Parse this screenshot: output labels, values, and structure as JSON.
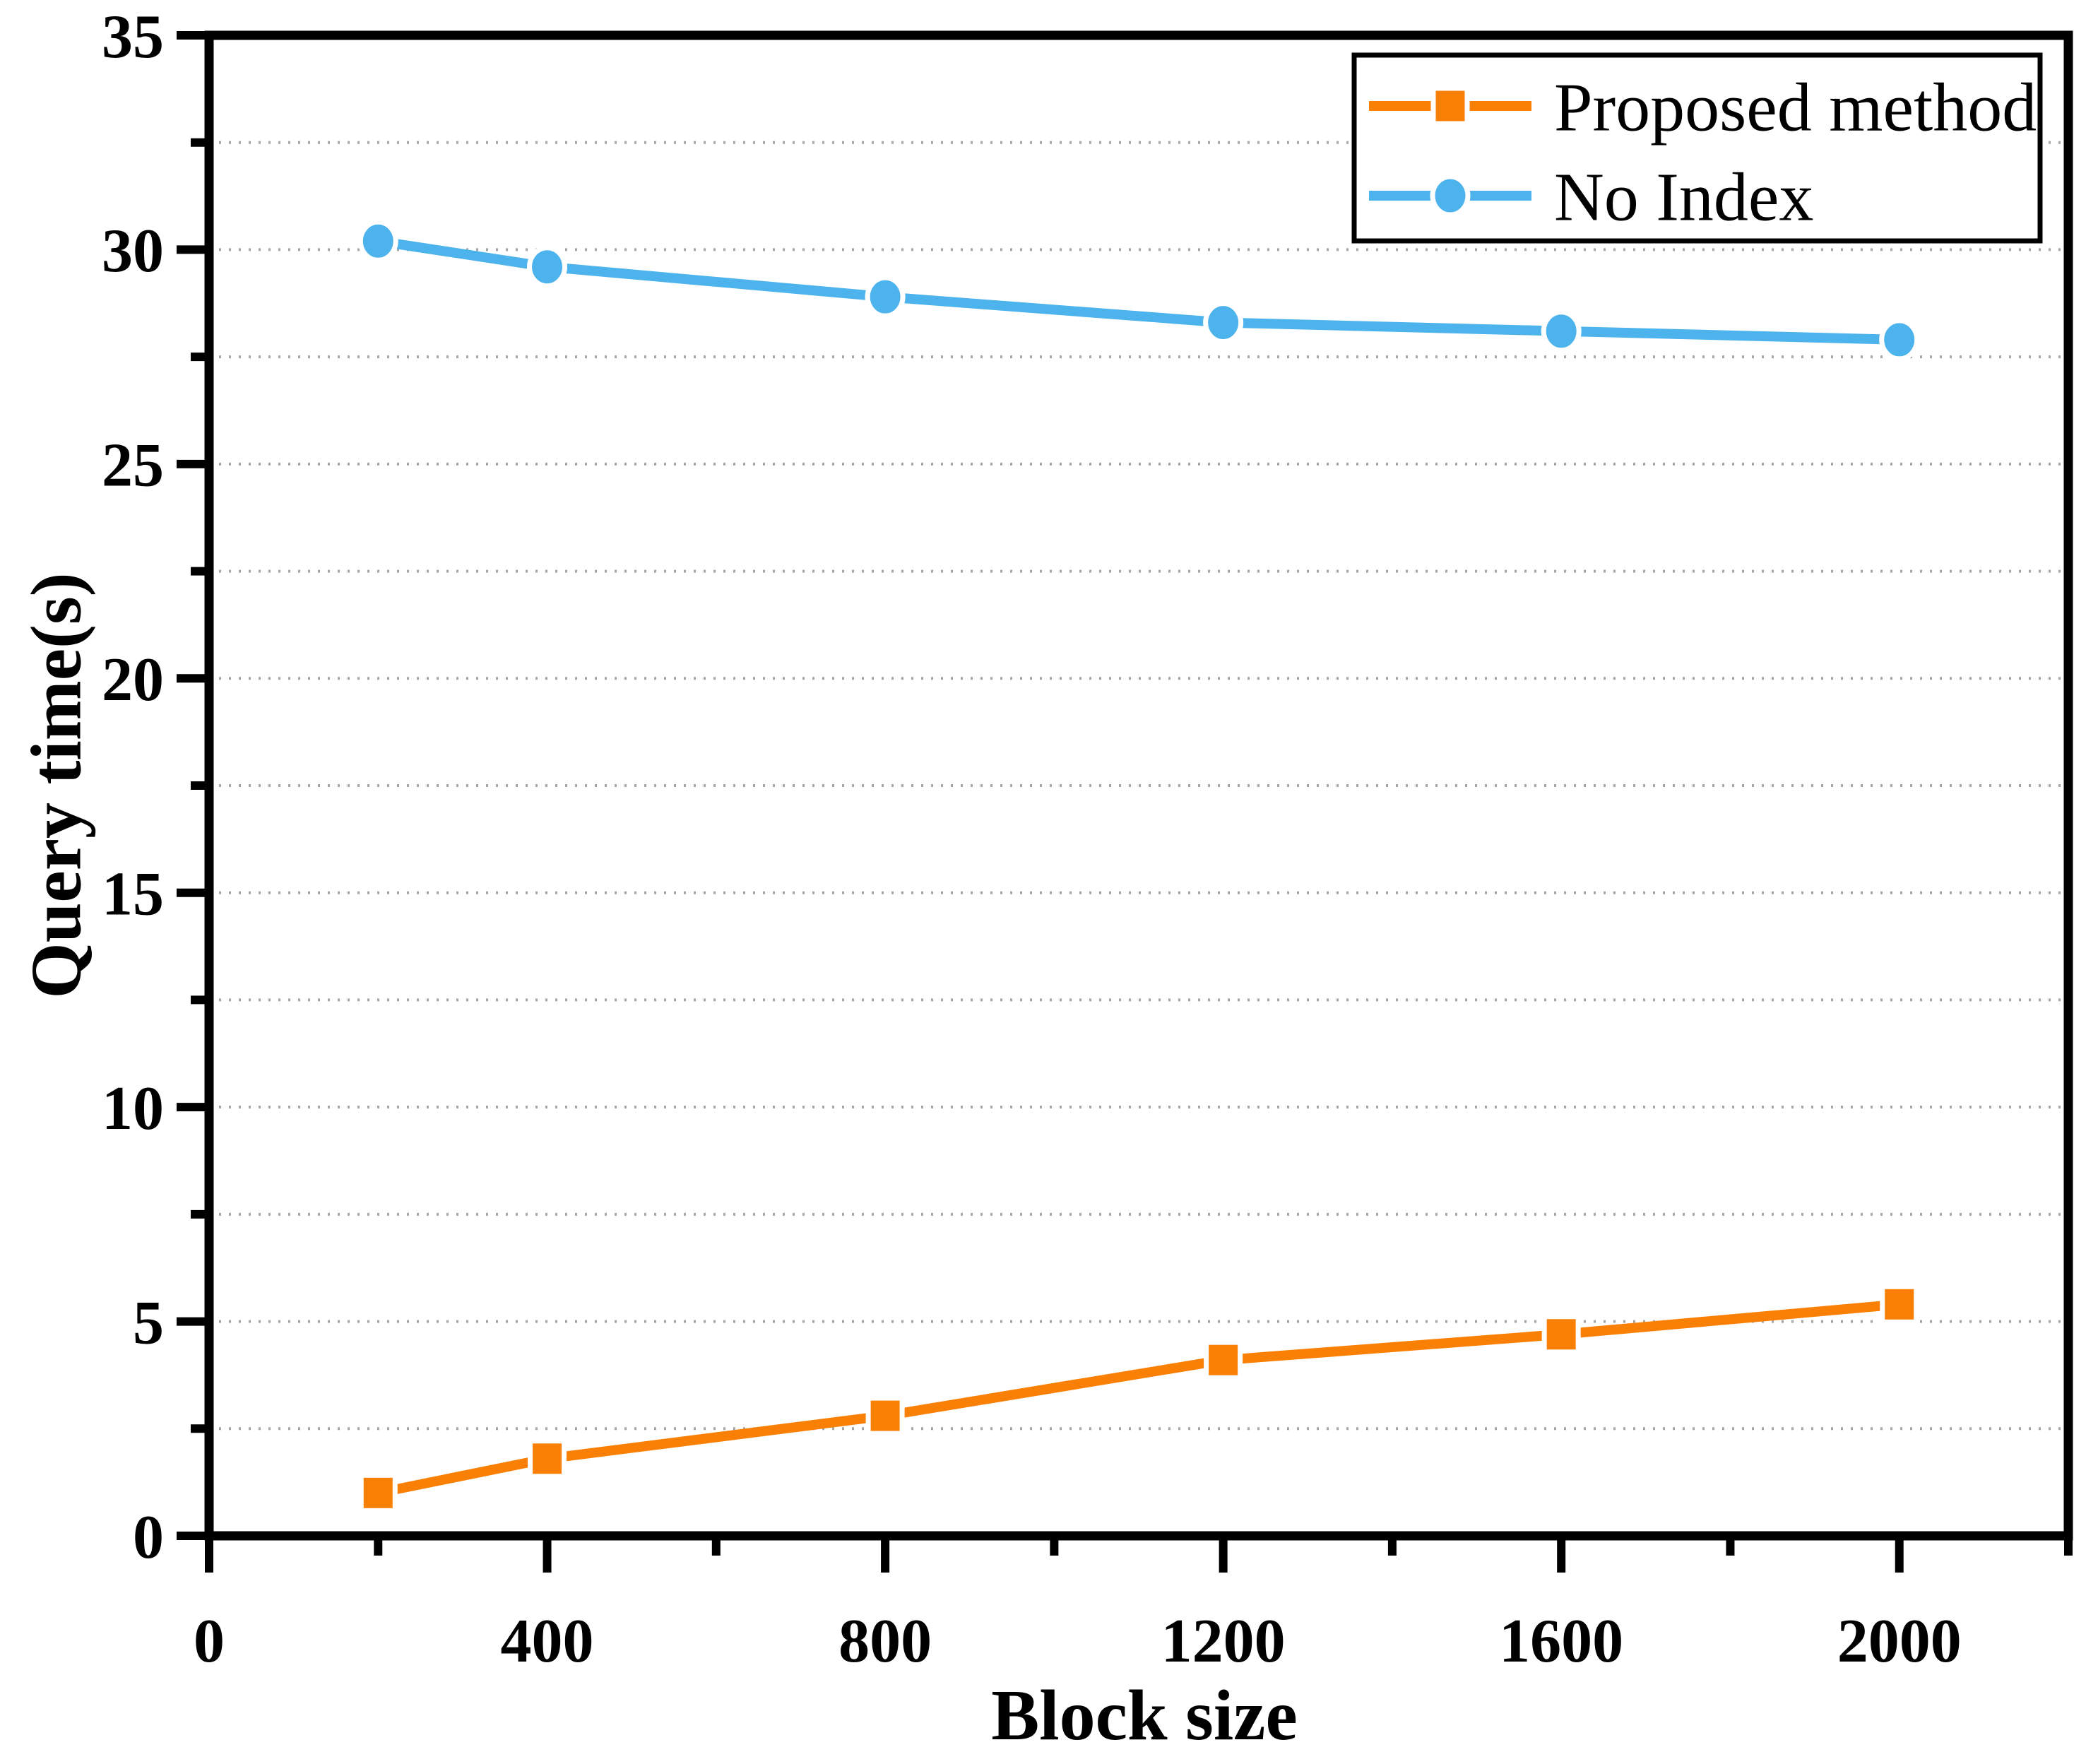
{
  "chart_data": {
    "type": "line",
    "title": "",
    "xlabel": "Block size",
    "ylabel": "Query time(s)",
    "x": [
      200,
      400,
      800,
      1200,
      1600,
      2000
    ],
    "series": [
      {
        "name": "Proposed method",
        "marker": "square",
        "color": "#FA8005",
        "values": [
          1.0,
          1.8,
          2.8,
          4.1,
          4.7,
          5.4
        ]
      },
      {
        "name": "No Index",
        "marker": "circle",
        "color": "#4DB3EC",
        "values": [
          30.2,
          29.6,
          28.9,
          28.3,
          28.1,
          27.9
        ]
      }
    ],
    "xlim": [
      0,
      2200
    ],
    "ylim": [
      0,
      35
    ],
    "x_major_ticks": [
      0,
      400,
      800,
      1200,
      1600,
      2000
    ],
    "x_minor_ticks": [
      200,
      600,
      1000,
      1400,
      1800,
      2200
    ],
    "y_major_ticks": [
      0,
      5,
      10,
      15,
      20,
      25,
      30,
      35
    ],
    "y_minor_ticks": [
      2.5,
      7.5,
      12.5,
      17.5,
      22.5,
      27.5,
      32.5
    ],
    "grid": "horizontal-dotted",
    "grid_color": "#A6A6A6",
    "axis_color": "#000000",
    "legend_position": "top-right"
  }
}
